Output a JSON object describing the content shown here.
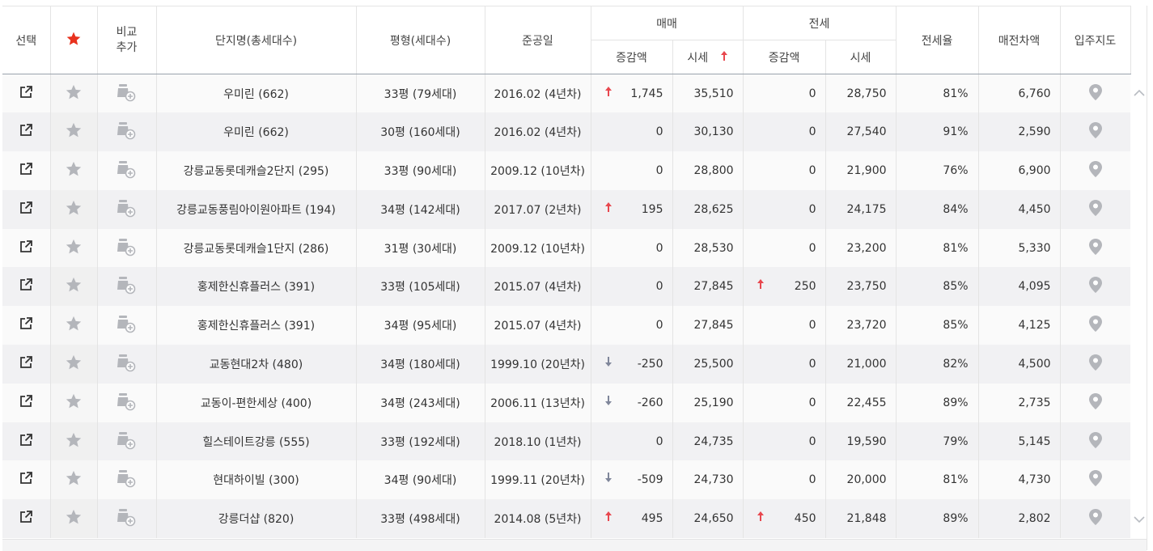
{
  "header": {
    "select": "선택",
    "compare_line1": "비교",
    "compare_line2": "추가",
    "complex": "단지명(총세대수)",
    "pyeong": "평형(세대수)",
    "completion": "준공일",
    "sale": "매매",
    "jeonse": "전세",
    "change": "증감액",
    "price": "시세",
    "jeonse_rate": "전세율",
    "gap": "매전차액",
    "move_in_map": "입주지도"
  },
  "colors": {
    "up": "#e8474e",
    "down": "#7f869a",
    "star_active": "#e8321e",
    "icon_gray": "#b4b6bb"
  },
  "rows": [
    {
      "name": "우미린 (662)",
      "py": "33평 (79세대)",
      "date": "2016.02 (4년차)",
      "sale_dir": "up",
      "sale_chg": "1,745",
      "sale_price": "35,510",
      "jeon_dir": "",
      "jeon_chg": "0",
      "jeon_price": "28,750",
      "rate": "81%",
      "gap": "6,760"
    },
    {
      "name": "우미린 (662)",
      "py": "30평 (160세대)",
      "date": "2016.02 (4년차)",
      "sale_dir": "",
      "sale_chg": "0",
      "sale_price": "30,130",
      "jeon_dir": "",
      "jeon_chg": "0",
      "jeon_price": "27,540",
      "rate": "91%",
      "gap": "2,590"
    },
    {
      "name": "강릉교동롯데캐슬2단지 (295)",
      "py": "33평 (90세대)",
      "date": "2009.12 (10년차)",
      "sale_dir": "",
      "sale_chg": "0",
      "sale_price": "28,800",
      "jeon_dir": "",
      "jeon_chg": "0",
      "jeon_price": "21,900",
      "rate": "76%",
      "gap": "6,900"
    },
    {
      "name": "강릉교동풍림아이원아파트 (194)",
      "py": "34평 (142세대)",
      "date": "2017.07 (2년차)",
      "sale_dir": "up",
      "sale_chg": "195",
      "sale_price": "28,625",
      "jeon_dir": "",
      "jeon_chg": "0",
      "jeon_price": "24,175",
      "rate": "84%",
      "gap": "4,450"
    },
    {
      "name": "강릉교동롯데캐슬1단지 (286)",
      "py": "31평 (30세대)",
      "date": "2009.12 (10년차)",
      "sale_dir": "",
      "sale_chg": "0",
      "sale_price": "28,530",
      "jeon_dir": "",
      "jeon_chg": "0",
      "jeon_price": "23,200",
      "rate": "81%",
      "gap": "5,330"
    },
    {
      "name": "홍제한신휴플러스 (391)",
      "py": "33평 (105세대)",
      "date": "2015.07 (4년차)",
      "sale_dir": "",
      "sale_chg": "0",
      "sale_price": "27,845",
      "jeon_dir": "up",
      "jeon_chg": "250",
      "jeon_price": "23,750",
      "rate": "85%",
      "gap": "4,095"
    },
    {
      "name": "홍제한신휴플러스 (391)",
      "py": "34평 (95세대)",
      "date": "2015.07 (4년차)",
      "sale_dir": "",
      "sale_chg": "0",
      "sale_price": "27,845",
      "jeon_dir": "",
      "jeon_chg": "0",
      "jeon_price": "23,720",
      "rate": "85%",
      "gap": "4,125"
    },
    {
      "name": "교동현대2차 (480)",
      "py": "34평 (180세대)",
      "date": "1999.10 (20년차)",
      "sale_dir": "down",
      "sale_chg": "-250",
      "sale_price": "25,500",
      "jeon_dir": "",
      "jeon_chg": "0",
      "jeon_price": "21,000",
      "rate": "82%",
      "gap": "4,500"
    },
    {
      "name": "교동이-편한세상 (400)",
      "py": "34평 (243세대)",
      "date": "2006.11 (13년차)",
      "sale_dir": "down",
      "sale_chg": "-260",
      "sale_price": "25,190",
      "jeon_dir": "",
      "jeon_chg": "0",
      "jeon_price": "22,455",
      "rate": "89%",
      "gap": "2,735"
    },
    {
      "name": "힐스테이트강릉 (555)",
      "py": "33평 (192세대)",
      "date": "2018.10 (1년차)",
      "sale_dir": "",
      "sale_chg": "0",
      "sale_price": "24,735",
      "jeon_dir": "",
      "jeon_chg": "0",
      "jeon_price": "19,590",
      "rate": "79%",
      "gap": "5,145"
    },
    {
      "name": "현대하이빌 (300)",
      "py": "34평 (90세대)",
      "date": "1999.11 (20년차)",
      "sale_dir": "down",
      "sale_chg": "-509",
      "sale_price": "24,730",
      "jeon_dir": "",
      "jeon_chg": "0",
      "jeon_price": "20,000",
      "rate": "81%",
      "gap": "4,730"
    },
    {
      "name": "강릉더샵 (820)",
      "py": "33평 (498세대)",
      "date": "2014.08 (5년차)",
      "sale_dir": "up",
      "sale_chg": "495",
      "sale_price": "24,650",
      "jeon_dir": "up",
      "jeon_chg": "450",
      "jeon_price": "21,848",
      "rate": "89%",
      "gap": "2,802"
    }
  ]
}
